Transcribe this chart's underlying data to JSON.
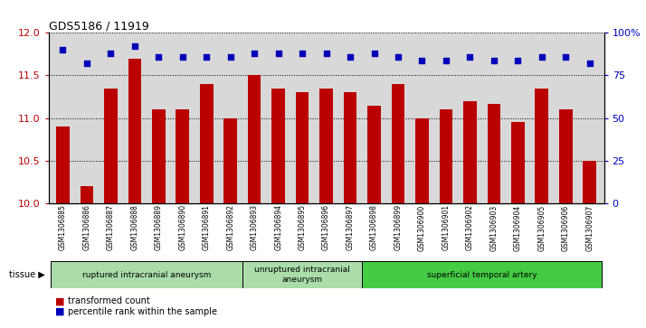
{
  "title": "GDS5186 / 11919",
  "samples": [
    "GSM1306885",
    "GSM1306886",
    "GSM1306887",
    "GSM1306888",
    "GSM1306889",
    "GSM1306890",
    "GSM1306891",
    "GSM1306892",
    "GSM1306893",
    "GSM1306894",
    "GSM1306895",
    "GSM1306896",
    "GSM1306897",
    "GSM1306898",
    "GSM1306899",
    "GSM1306900",
    "GSM1306901",
    "GSM1306902",
    "GSM1306903",
    "GSM1306904",
    "GSM1306905",
    "GSM1306906",
    "GSM1306907"
  ],
  "transformed_count": [
    10.9,
    10.2,
    11.35,
    11.7,
    11.1,
    11.1,
    11.4,
    11.0,
    11.5,
    11.35,
    11.3,
    11.35,
    11.3,
    11.15,
    11.4,
    11.0,
    11.1,
    11.2,
    11.17,
    10.95,
    11.35,
    11.1,
    10.5
  ],
  "percentile_rank": [
    90,
    82,
    88,
    92,
    86,
    86,
    86,
    86,
    88,
    88,
    88,
    88,
    86,
    88,
    86,
    84,
    84,
    86,
    84,
    84,
    86,
    86,
    82
  ],
  "bar_color": "#BB0000",
  "dot_color": "#0000BB",
  "ylim_left": [
    10,
    12
  ],
  "ylim_right": [
    0,
    100
  ],
  "yticks_left": [
    10,
    10.5,
    11,
    11.5,
    12
  ],
  "yticks_right": [
    0,
    25,
    50,
    75,
    100
  ],
  "groups": [
    {
      "label": "ruptured intracranial aneurysm",
      "start": 0,
      "end": 8,
      "color": "#AADDAA"
    },
    {
      "label": "unruptured intracranial\naneurysm",
      "start": 8,
      "end": 13,
      "color": "#AADDAA"
    },
    {
      "label": "superficial temporal artery",
      "start": 13,
      "end": 23,
      "color": "#44CC44"
    }
  ],
  "tissue_label": "tissue",
  "legend_items": [
    {
      "label": "transformed count",
      "color": "#BB0000"
    },
    {
      "label": "percentile rank within the sample",
      "color": "#0000BB"
    }
  ],
  "plot_bg_color": "#D8D8D8",
  "tick_bg_color": "#D8D8D8"
}
